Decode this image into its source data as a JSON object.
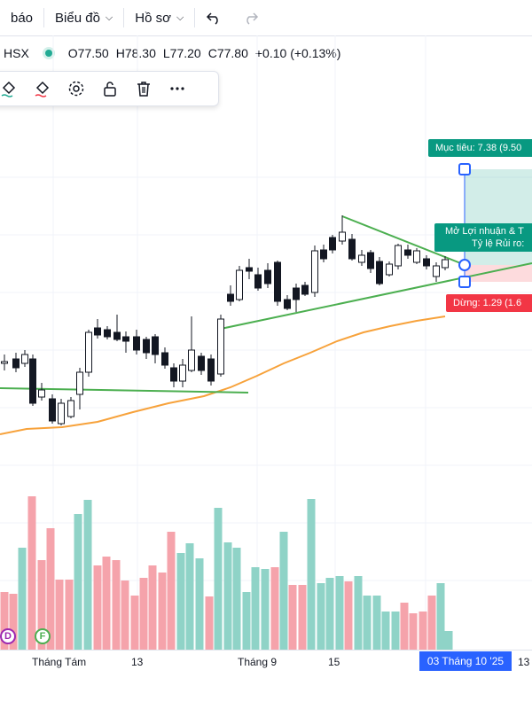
{
  "topbar": {
    "alert_label": "báo",
    "chart_menu_label": "Biểu đồ",
    "profile_menu_label": "Hồ sơ",
    "undo_icon": "undo-icon",
    "redo_icon": "redo-icon"
  },
  "symbol": {
    "exchange": "HSX",
    "status_color": "#22ab94",
    "open": "O77.50",
    "high": "H78.30",
    "low": "L77.20",
    "close": "C77.80",
    "change": "+0.10 (+0.13%)"
  },
  "drawing_toolbar": {
    "tools": [
      "fill-bucket-icon",
      "fill-bucket-icon",
      "settings-gear-icon",
      "unlock-icon",
      "trash-icon",
      "more-icon"
    ]
  },
  "position_tool": {
    "target_label": "Mục tiêu: 7.38 (9.50",
    "open_label_line1": "Mở Lợi nhuận & T",
    "open_label_line2": "Tỷ lệ Rủi ro:",
    "stop_label": "Dừng: 1.29 (1.6",
    "profit_color": "#089981",
    "loss_color": "#f23645"
  },
  "events": {
    "dividend": "D",
    "earnings": "F"
  },
  "xaxis": {
    "labels": [
      "Tháng Tám",
      "13",
      "Tháng 9",
      "15",
      "13"
    ],
    "current_date": "03 Tháng 10 '25"
  },
  "colors": {
    "up_volume": "#8fd3c7",
    "down_volume": "#f5a3ab",
    "trendline": "#4caf50",
    "moving_average": "#f7a23b",
    "accent": "#2962ff"
  },
  "chart_data": {
    "type": "candlestick",
    "title": "",
    "series": [
      {
        "name": "",
        "x_axis": [
          "Tháng Tám",
          "13",
          "Tháng 9",
          "15"
        ]
      }
    ],
    "last_bar": {
      "open": 77.5,
      "high": 78.3,
      "low": 77.2,
      "close": 77.8,
      "change": 0.1,
      "change_pct": 0.13
    },
    "grid": true
  }
}
